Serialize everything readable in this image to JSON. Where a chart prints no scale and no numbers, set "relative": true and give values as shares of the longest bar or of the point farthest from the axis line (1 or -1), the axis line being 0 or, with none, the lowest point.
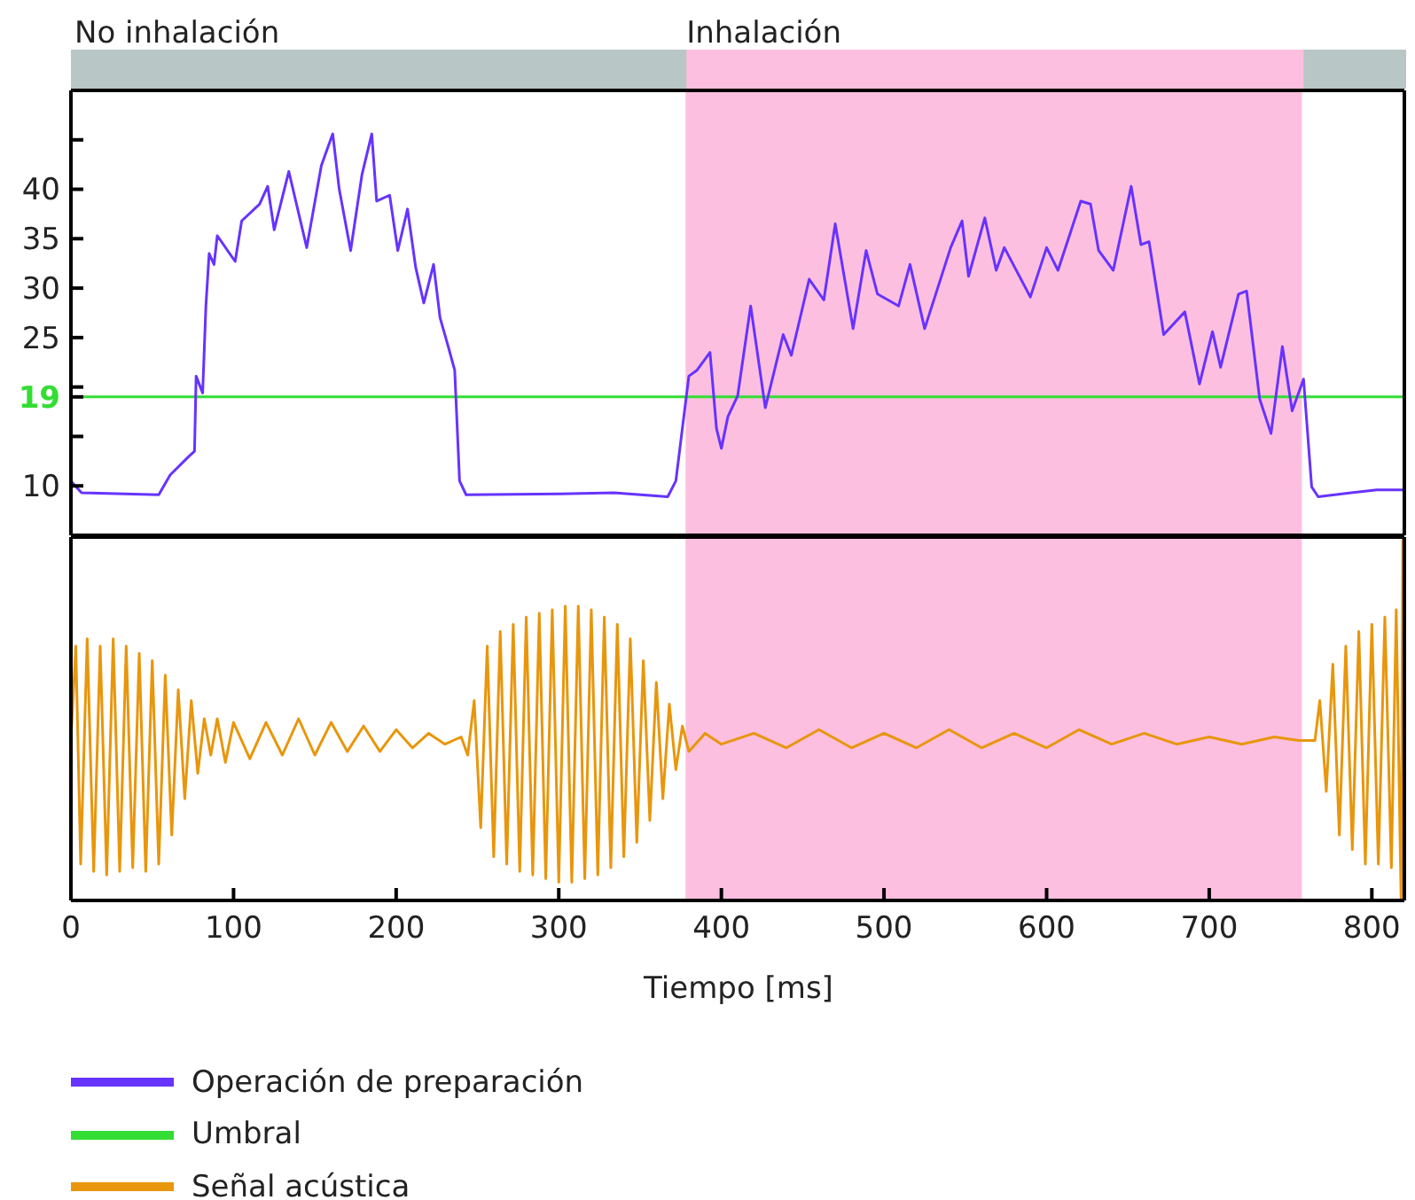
{
  "chart_data": [
    {
      "type": "line",
      "xlim": [
        0,
        820
      ],
      "xticks": [
        0,
        100,
        200,
        300,
        400,
        500,
        600,
        700,
        800
      ],
      "ylim": [
        5,
        50
      ],
      "yticks": [
        10,
        {
          "value": 15,
          "label": null
        },
        19,
        {
          "value": 20,
          "label": null
        },
        25,
        30,
        35,
        40,
        {
          "value": 45,
          "label": null
        }
      ],
      "tick_labels": "y",
      "series": [
        {
          "name": "Operación de preparación",
          "color": "#6633ff",
          "x": [
            0,
            6.5,
            54,
            61,
            72,
            76,
            77,
            81,
            83,
            85,
            88,
            90,
            101,
            105,
            116,
            121,
            125,
            134,
            145,
            154,
            161,
            165,
            172,
            179,
            185,
            188,
            196,
            201,
            207,
            212,
            217,
            223,
            227,
            232,
            236,
            239,
            243,
            301,
            334,
            367,
            372,
            380,
            385,
            393,
            397,
            400,
            404,
            410,
            418,
            427,
            438,
            443,
            454,
            463,
            470,
            481,
            489,
            496,
            509,
            516,
            525,
            541,
            548,
            552,
            562,
            569,
            574,
            590,
            600,
            607,
            621,
            627,
            632,
            641,
            652,
            658,
            663,
            672,
            685,
            694,
            702,
            707,
            718,
            723,
            731,
            738,
            745,
            751,
            758,
            763,
            767,
            803,
            820
          ],
          "values": [
            10.5,
            9.3,
            9.1,
            11.1,
            12.9,
            13.5,
            21.1,
            19.4,
            28.2,
            33.5,
            32.4,
            35.3,
            32.7,
            36.8,
            38.5,
            40.3,
            35.9,
            41.8,
            34.1,
            42.4,
            45.6,
            40.0,
            33.8,
            41.5,
            45.6,
            38.8,
            39.4,
            33.8,
            38.0,
            32.1,
            28.5,
            32.4,
            27.0,
            24.1,
            21.7,
            10.5,
            9.1,
            9.2,
            9.3,
            8.9,
            10.5,
            21.1,
            21.7,
            23.5,
            15.8,
            13.8,
            17.0,
            19.1,
            28.2,
            17.9,
            25.3,
            23.2,
            30.9,
            28.8,
            36.5,
            25.9,
            33.8,
            29.4,
            28.2,
            32.4,
            25.9,
            34.1,
            36.8,
            31.2,
            37.1,
            31.8,
            34.1,
            29.1,
            34.1,
            31.8,
            38.8,
            38.5,
            33.8,
            31.8,
            40.3,
            34.4,
            34.7,
            25.3,
            27.6,
            20.3,
            25.6,
            22.0,
            29.4,
            29.7,
            18.8,
            15.3,
            24.1,
            17.6,
            20.8,
            9.9,
            8.9,
            9.6,
            9.6
          ]
        }
      ],
      "ref_lines": [
        {
          "axis": "y",
          "value": 19,
          "label": "Umbral",
          "color": "#33dd33"
        }
      ],
      "legend": "bottom",
      "annotations": [
        "No inhalación"
      ],
      "bands": [
        {
          "axis": "x",
          "from": 378,
          "to": 757,
          "label": "Inhalación",
          "color": "#fdbfdf"
        }
      ]
    },
    {
      "type": "line",
      "relative": true,
      "xlim": [
        0,
        820
      ],
      "xticks": [
        0,
        100,
        200,
        300,
        400,
        500,
        600,
        700,
        800
      ],
      "xlabel": "Tiempo [ms]",
      "legend": "bottom",
      "series": [
        {
          "name": "Señal acústica",
          "color": "#e8960c",
          "x": [
            0,
            3,
            6,
            10,
            14,
            18,
            22,
            26,
            30,
            34,
            38,
            42,
            46,
            50,
            54,
            58,
            62,
            66,
            70,
            74,
            78,
            82,
            86,
            90,
            95,
            100,
            110,
            120,
            130,
            140,
            150,
            160,
            170,
            180,
            190,
            200,
            210,
            220,
            230,
            240,
            244,
            248,
            252,
            256,
            260,
            264,
            268,
            272,
            276,
            280,
            284,
            288,
            292,
            296,
            300,
            304,
            308,
            312,
            316,
            320,
            324,
            328,
            332,
            336,
            340,
            344,
            348,
            352,
            356,
            360,
            364,
            368,
            372,
            376,
            380,
            390,
            400,
            420,
            440,
            460,
            480,
            500,
            520,
            540,
            560,
            580,
            600,
            620,
            640,
            660,
            680,
            700,
            720,
            740,
            755,
            765,
            768,
            772,
            776,
            780,
            784,
            788,
            792,
            796,
            800,
            804,
            808,
            812,
            815,
            818,
            819,
            820
          ],
          "values": [
            0.44,
            0.7,
            0.1,
            0.72,
            0.08,
            0.7,
            0.07,
            0.72,
            0.08,
            0.7,
            0.09,
            0.68,
            0.08,
            0.66,
            0.1,
            0.62,
            0.18,
            0.58,
            0.28,
            0.55,
            0.35,
            0.5,
            0.4,
            0.5,
            0.38,
            0.49,
            0.39,
            0.49,
            0.4,
            0.5,
            0.4,
            0.49,
            0.41,
            0.48,
            0.41,
            0.47,
            0.42,
            0.46,
            0.43,
            0.45,
            0.4,
            0.55,
            0.2,
            0.7,
            0.12,
            0.74,
            0.1,
            0.76,
            0.08,
            0.78,
            0.07,
            0.79,
            0.06,
            0.8,
            0.05,
            0.81,
            0.05,
            0.81,
            0.06,
            0.8,
            0.07,
            0.78,
            0.09,
            0.76,
            0.12,
            0.72,
            0.16,
            0.66,
            0.22,
            0.6,
            0.28,
            0.54,
            0.36,
            0.48,
            0.41,
            0.46,
            0.43,
            0.46,
            0.42,
            0.47,
            0.42,
            0.46,
            0.42,
            0.47,
            0.42,
            0.46,
            0.42,
            0.47,
            0.43,
            0.46,
            0.43,
            0.45,
            0.43,
            0.45,
            0.44,
            0.44,
            0.55,
            0.3,
            0.65,
            0.18,
            0.7,
            0.14,
            0.74,
            0.1,
            0.76,
            0.1,
            0.78,
            0.09,
            0.8,
            0.0,
            1.0,
            0.45
          ]
        }
      ],
      "bands": [
        {
          "axis": "x",
          "from": 378,
          "to": 757,
          "color": "#fdbfdf"
        }
      ]
    }
  ]
}
